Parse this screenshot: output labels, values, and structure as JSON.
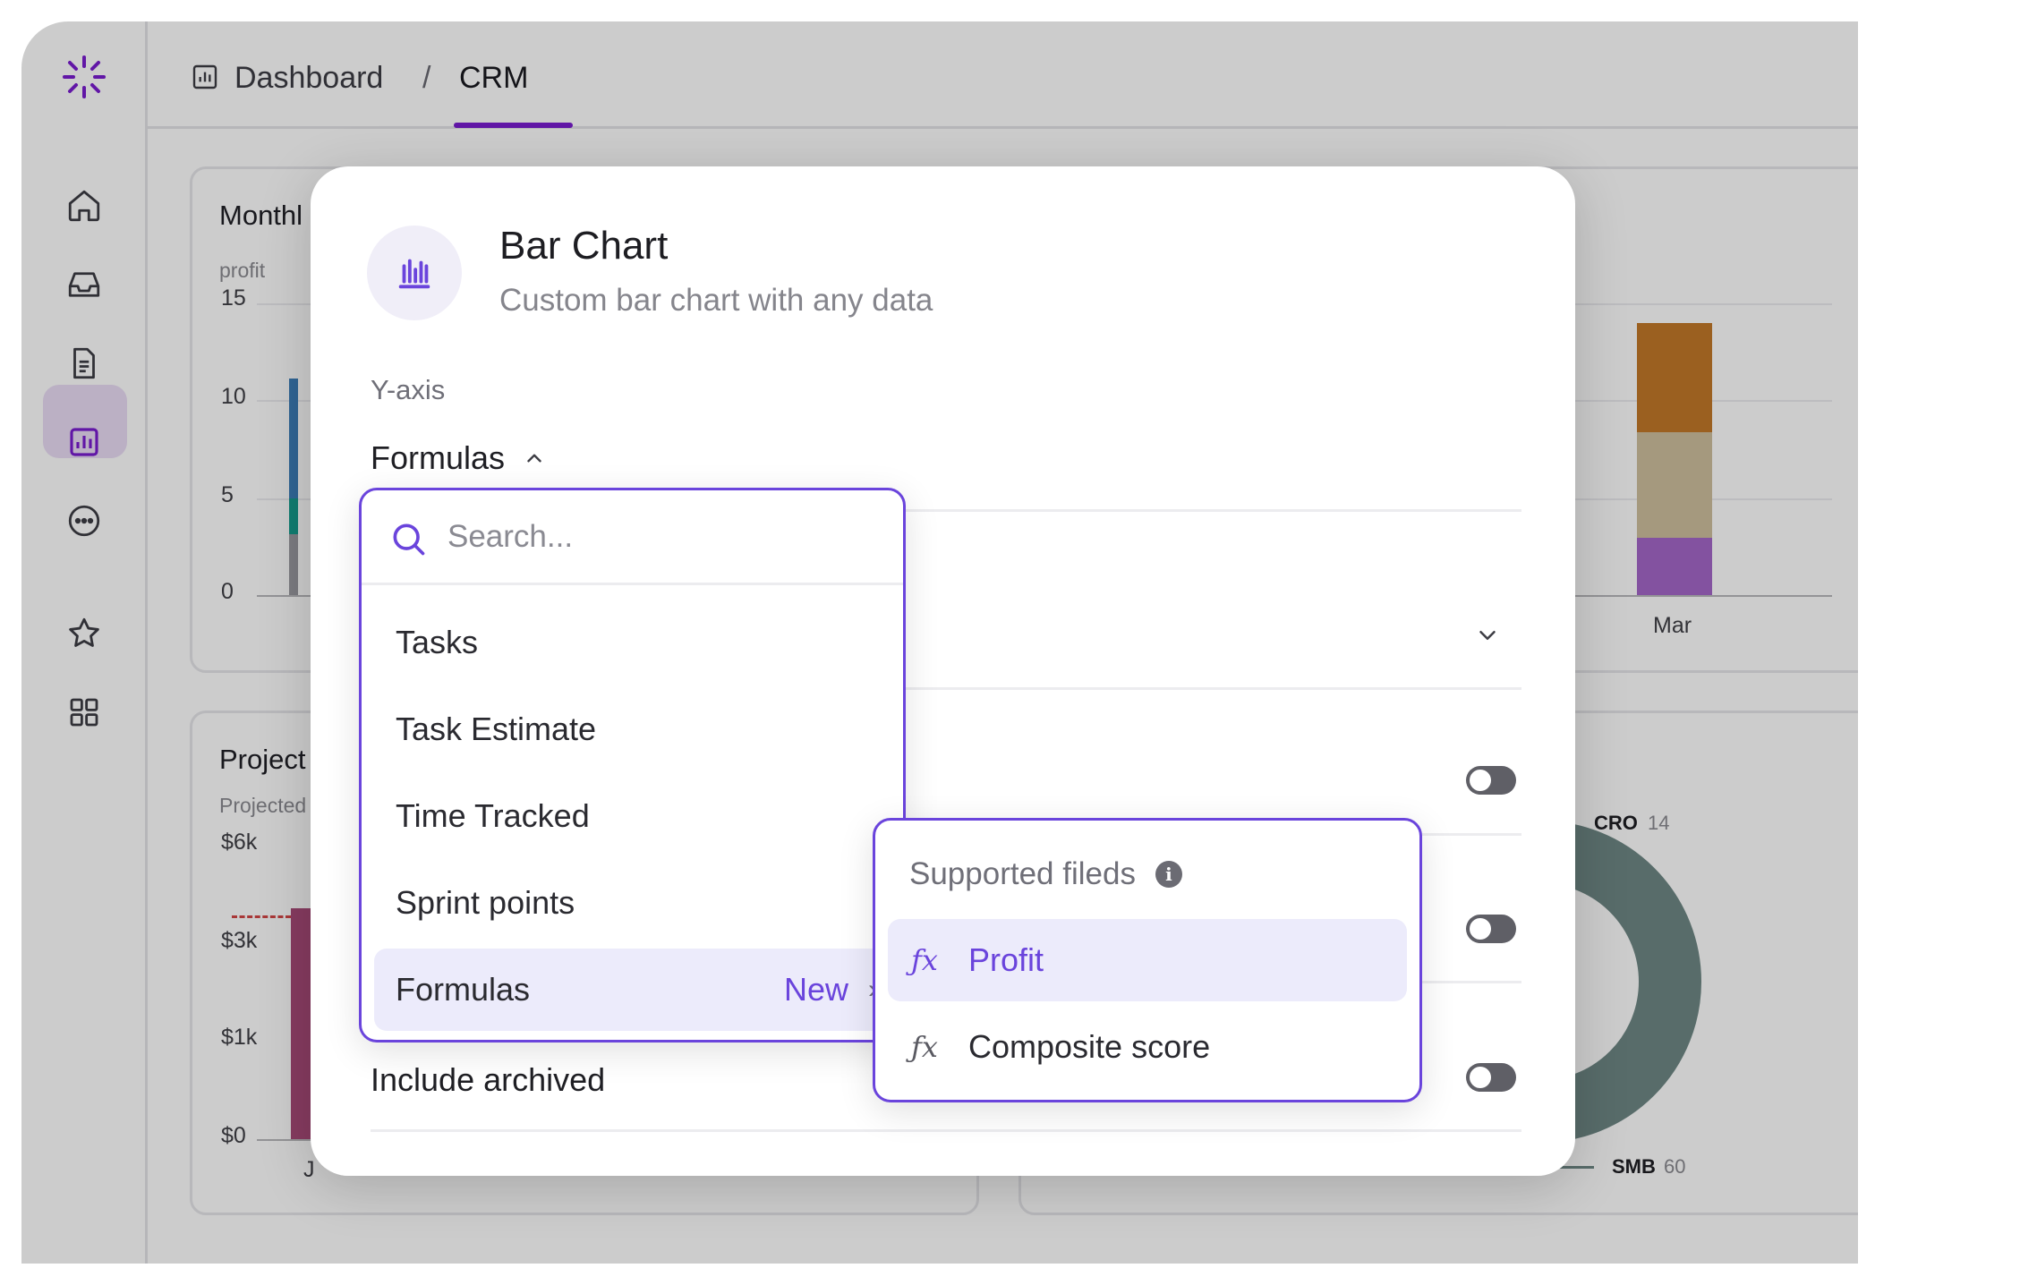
{
  "colors": {
    "accent": "#6a44dc",
    "brand_purple": "#7a1cd0",
    "bar_orange": "#c27829",
    "bar_tan": "#cfc09e",
    "bar_purple": "#a467c9",
    "bar_blue": "#3c7eb8",
    "bar_teal": "#159b8c",
    "bar_pink": "#a84a78",
    "donut_gray": "#6f8885"
  },
  "sidebar": {
    "icons": [
      "sparkle-logo-icon",
      "home-icon",
      "inbox-icon",
      "document-icon",
      "chart-icon",
      "more-icon",
      "star-icon",
      "apps-grid-icon"
    ]
  },
  "breadcrumb": {
    "root": "Dashboard",
    "separator": "/",
    "current": "CRM"
  },
  "background_cards": {
    "monthly": {
      "title": "Monthl",
      "subtitle": "profit",
      "y_ticks": [
        "15",
        "10",
        "5",
        "0"
      ],
      "x_label_right": "Mar"
    },
    "projected": {
      "title": "Project",
      "subtitle": "Projected",
      "y_ticks": [
        "$6k",
        "$3k",
        "$1k",
        "$0"
      ],
      "x_label_cut": "J"
    },
    "donut": {
      "label_top": "CRO",
      "label_top_value": "14",
      "label_bottom": "SMB",
      "label_bottom_value": "60"
    }
  },
  "modal": {
    "title": "Bar Chart",
    "description": "Custom bar chart with any data",
    "yaxis_label": "Y-axis",
    "formulas_trigger": "Formulas",
    "include_archived_label": "Include archived"
  },
  "dropdown": {
    "search_placeholder": "Search...",
    "items": [
      {
        "label": "Tasks"
      },
      {
        "label": "Task Estimate"
      },
      {
        "label": "Time Tracked"
      },
      {
        "label": "Sprint points"
      },
      {
        "label": "Formulas",
        "badge": "New",
        "active": true
      }
    ]
  },
  "submenu": {
    "header": "Supported fileds",
    "items": [
      {
        "label": "Profit",
        "icon": "fx",
        "active": true
      },
      {
        "label": "Composite score",
        "icon": "fx"
      }
    ]
  }
}
